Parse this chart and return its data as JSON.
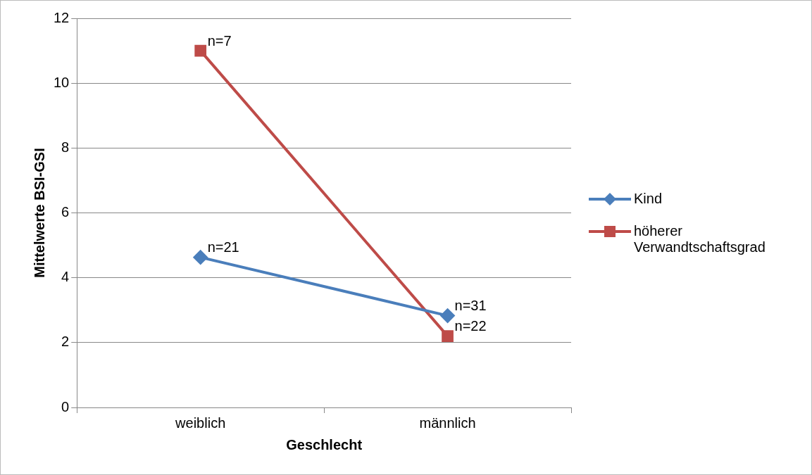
{
  "chart_data": {
    "type": "line",
    "xlabel": "Geschlecht",
    "ylabel": "Mittelwerte BSI-GSI",
    "categories": [
      "weiblich",
      "männlich"
    ],
    "series": [
      {
        "name": "Kind",
        "color": "#4a7ebb",
        "values": [
          4.63,
          2.83
        ],
        "marker": "diamond"
      },
      {
        "name": "höherer Verwandtschaftsgrad",
        "color": "#be4b48",
        "values": [
          11.0,
          2.2
        ],
        "marker": "square"
      }
    ],
    "ylim": [
      0,
      12
    ],
    "yticks": [
      0,
      2,
      4,
      6,
      8,
      10,
      12
    ],
    "grid": "y",
    "legend": "right",
    "annotations": [
      {
        "text": "n=21",
        "x": "weiblich",
        "y": 4.63
      },
      {
        "text": "n=7",
        "x": "weiblich",
        "y": 11.0
      },
      {
        "text": "n=31",
        "x": "männlich",
        "y": 2.83
      },
      {
        "text": "n=22",
        "x": "männlich",
        "y": 2.2
      }
    ]
  }
}
